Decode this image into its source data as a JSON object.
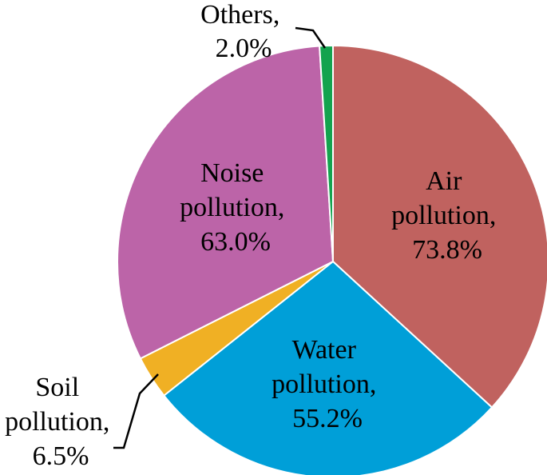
{
  "chart_data": {
    "type": "pie",
    "title": "",
    "unit": "%",
    "slices": [
      {
        "name": "Air pollution",
        "label_lines": [
          "Air",
          "pollution,",
          "73.8%"
        ],
        "value": 73.8,
        "color": "#C0625F"
      },
      {
        "name": "Water pollution",
        "label_lines": [
          "Water",
          "pollution,",
          "55.2%"
        ],
        "value": 55.2,
        "color": "#009FD8"
      },
      {
        "name": "Soil pollution",
        "label_lines": [
          "Soil",
          "pollution,",
          "6.5%"
        ],
        "value": 6.5,
        "color": "#F0B024"
      },
      {
        "name": "Noise pollution",
        "label_lines": [
          "Noise",
          "pollution,",
          "63.0%"
        ],
        "value": 63.0,
        "color": "#BC64A8"
      },
      {
        "name": "Others",
        "label_lines": [
          "Others,",
          "2.0%"
        ],
        "value": 2.0,
        "color": "#13A34E"
      }
    ]
  }
}
